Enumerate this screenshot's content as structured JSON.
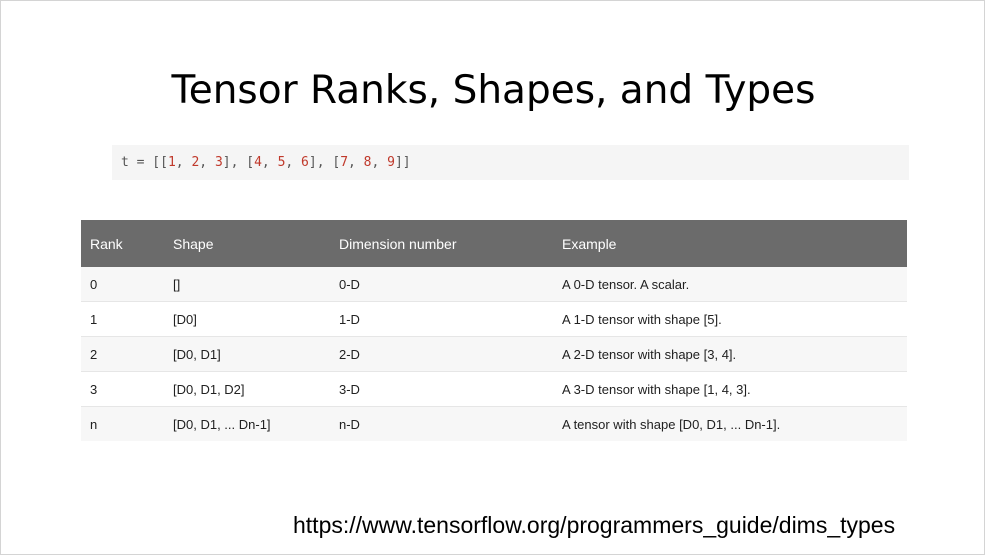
{
  "slide": {
    "title": "Tensor Ranks, Shapes, and Types",
    "code": {
      "prefix": "t = [[",
      "tokens": [
        {
          "t": "num",
          "v": "1"
        },
        {
          "t": "punc",
          "v": ", "
        },
        {
          "t": "num",
          "v": "2"
        },
        {
          "t": "punc",
          "v": ", "
        },
        {
          "t": "num",
          "v": "3"
        },
        {
          "t": "punc",
          "v": "], ["
        },
        {
          "t": "num",
          "v": "4"
        },
        {
          "t": "punc",
          "v": ", "
        },
        {
          "t": "num",
          "v": "5"
        },
        {
          "t": "punc",
          "v": ", "
        },
        {
          "t": "num",
          "v": "6"
        },
        {
          "t": "punc",
          "v": "], ["
        },
        {
          "t": "num",
          "v": "7"
        },
        {
          "t": "punc",
          "v": ", "
        },
        {
          "t": "num",
          "v": "8"
        },
        {
          "t": "punc",
          "v": ", "
        },
        {
          "t": "num",
          "v": "9"
        },
        {
          "t": "punc",
          "v": "]]"
        }
      ]
    },
    "table": {
      "headers": [
        "Rank",
        "Shape",
        "Dimension number",
        "Example"
      ],
      "rows": [
        [
          "0",
          "[]",
          "0-D",
          "A 0-D tensor. A scalar."
        ],
        [
          "1",
          "[D0]",
          "1-D",
          "A 1-D tensor with shape [5]."
        ],
        [
          "2",
          "[D0, D1]",
          "2-D",
          "A 2-D tensor with shape [3, 4]."
        ],
        [
          "3",
          "[D0, D1, D2]",
          "3-D",
          "A 3-D tensor with shape [1, 4, 3]."
        ],
        [
          "n",
          "[D0, D1, ... Dn-1]",
          "n-D",
          "A tensor with shape [D0, D1, ... Dn-1]."
        ]
      ]
    },
    "source_url": "https://www.tensorflow.org/programmers_guide/dims_types"
  },
  "colors": {
    "header_bg": "#6b6b6b",
    "code_bg": "#f5f5f5",
    "code_number": "#c0392b",
    "row_alt_bg": "#f7f7f7"
  }
}
